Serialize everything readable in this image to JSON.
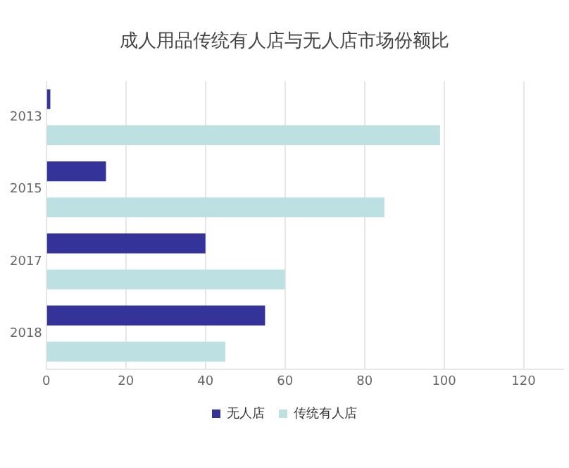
{
  "chart_data": {
    "type": "bar",
    "orientation": "horizontal",
    "title": "成人用品传统有人店与无人店市场份额比",
    "categories": [
      "2013",
      "2015",
      "2017",
      "2018"
    ],
    "series": [
      {
        "name": "无人店",
        "color": "#333399",
        "values": [
          1,
          15,
          40,
          55
        ]
      },
      {
        "name": "传统有人店",
        "color": "#bde0e3",
        "values": [
          99,
          85,
          60,
          45
        ]
      }
    ],
    "xlim": [
      0,
      130
    ],
    "xticks": [
      0,
      20,
      40,
      60,
      80,
      100,
      120
    ],
    "grid": "x",
    "legend": "bottom"
  }
}
